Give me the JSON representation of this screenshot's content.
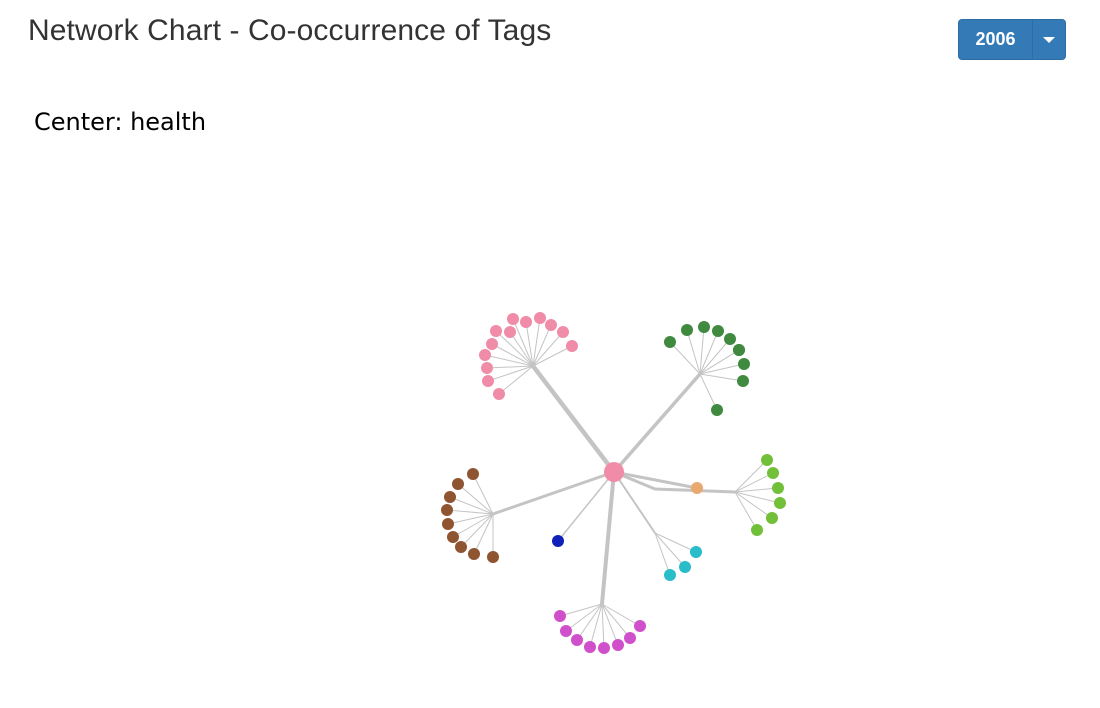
{
  "header": {
    "title": "Network Chart - Co-occurrence of Tags",
    "year_selected": "2006"
  },
  "center_label": "Center: health",
  "chart_data": {
    "type": "network",
    "center": {
      "name": "health",
      "color": "#f08ca8"
    },
    "edge_color": "#c4c4c4",
    "clusters": [
      {
        "name": "pink-cluster",
        "color": "#f08ca8",
        "leaf_count": 13
      },
      {
        "name": "dark-green-cluster",
        "color": "#3f8a3f",
        "leaf_count": 10
      },
      {
        "name": "light-green-cluster",
        "color": "#72bf3a",
        "leaf_count": 6
      },
      {
        "name": "orange-node",
        "color": "#e8a86e",
        "leaf_count": 0
      },
      {
        "name": "cyan-cluster",
        "color": "#29bcc9",
        "leaf_count": 3
      },
      {
        "name": "magenta-cluster",
        "color": "#d050cc",
        "leaf_count": 8
      },
      {
        "name": "blue-node",
        "color": "#1020b8",
        "leaf_count": 0
      },
      {
        "name": "brown-cluster",
        "color": "#8f5530",
        "leaf_count": 9
      }
    ]
  }
}
